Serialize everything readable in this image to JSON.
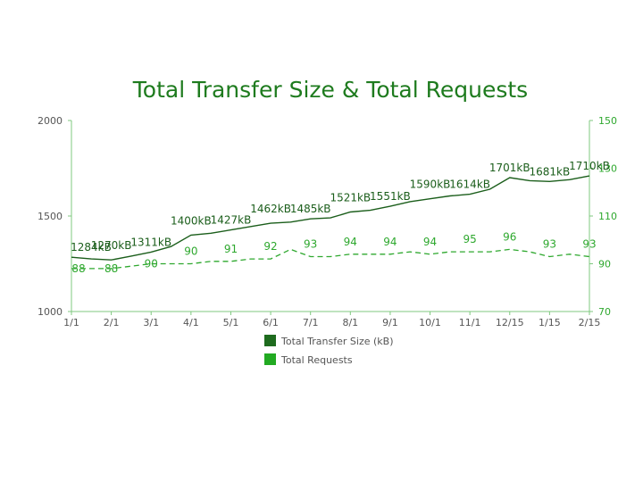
{
  "chart_data": {
    "type": "line",
    "title": "Total Transfer Size & Total Requests",
    "categories": [
      "1/1",
      "2/1",
      "3/1",
      "4/1",
      "5/1",
      "6/1",
      "7/1",
      "8/1",
      "9/1",
      "10/1",
      "11/1",
      "12/15",
      "1/15",
      "2/15"
    ],
    "y_left": {
      "ticks": [
        1000,
        1500,
        2000
      ],
      "ylim": [
        1000,
        2000
      ]
    },
    "y_right": {
      "ticks": [
        70,
        90,
        110,
        130,
        150
      ],
      "ylim": [
        70,
        150
      ]
    },
    "series": [
      {
        "name": "Total Transfer Size (kB)",
        "axis": "left",
        "style": "solid",
        "color": "#1b5e1b",
        "legend_color": "#1e6b1e",
        "x": [
          0,
          0.5,
          1,
          1.5,
          2,
          2.5,
          3,
          3.5,
          4,
          4.5,
          5,
          5.5,
          6,
          6.5,
          7,
          7.5,
          8,
          8.5,
          9,
          9.5,
          10,
          10.5,
          11,
          11.5,
          12,
          12.5,
          13
        ],
        "y": [
          1284,
          1275,
          1270,
          1290,
          1311,
          1340,
          1400,
          1410,
          1427,
          1445,
          1462,
          1468,
          1485,
          1490,
          1521,
          1530,
          1551,
          1575,
          1590,
          1605,
          1614,
          1640,
          1701,
          1685,
          1681,
          1690,
          1710
        ],
        "labeled_points": [
          {
            "x": 0,
            "label": "1284kB"
          },
          {
            "x": 1,
            "label": "1270kB"
          },
          {
            "x": 2,
            "label": "1311kB"
          },
          {
            "x": 3,
            "label": "1400kB"
          },
          {
            "x": 4,
            "label": "1427kB"
          },
          {
            "x": 5,
            "label": "1462kB"
          },
          {
            "x": 6,
            "label": "1485kB"
          },
          {
            "x": 7,
            "label": "1521kB"
          },
          {
            "x": 8,
            "label": "1551kB"
          },
          {
            "x": 9,
            "label": "1590kB"
          },
          {
            "x": 10,
            "label": "1614kB"
          },
          {
            "x": 11,
            "label": "1701kB"
          },
          {
            "x": 12,
            "label": "1681kB"
          },
          {
            "x": 13,
            "label": "1710kB"
          }
        ]
      },
      {
        "name": "Total Requests",
        "axis": "right",
        "style": "dashed",
        "color": "#2ea82e",
        "legend_color": "#22aa22",
        "x": [
          0,
          0.5,
          1,
          1.5,
          2,
          2.5,
          3,
          3.5,
          4,
          4.5,
          5,
          5.5,
          6,
          6.5,
          7,
          7.5,
          8,
          8.5,
          9,
          9.5,
          10,
          10.5,
          11,
          11.5,
          12,
          12.5,
          13
        ],
        "y": [
          88,
          88,
          88,
          89,
          90,
          90,
          90,
          91,
          91,
          92,
          92,
          96,
          93,
          93,
          94,
          94,
          94,
          95,
          94,
          95,
          95,
          95,
          96,
          95,
          93,
          94,
          93
        ],
        "labeled_points": [
          {
            "x": 0,
            "label": "88"
          },
          {
            "x": 1,
            "label": "88"
          },
          {
            "x": 2,
            "label": "90"
          },
          {
            "x": 3,
            "label": "90"
          },
          {
            "x": 4,
            "label": "91"
          },
          {
            "x": 5,
            "label": "92"
          },
          {
            "x": 6,
            "label": "93"
          },
          {
            "x": 7,
            "label": "94"
          },
          {
            "x": 8,
            "label": "94"
          },
          {
            "x": 9,
            "label": "94"
          },
          {
            "x": 10,
            "label": "95"
          },
          {
            "x": 11,
            "label": "96"
          },
          {
            "x": 12,
            "label": "93"
          },
          {
            "x": 13,
            "label": "93"
          }
        ]
      }
    ],
    "legend": {
      "placement": "bottom"
    },
    "grid": false
  }
}
